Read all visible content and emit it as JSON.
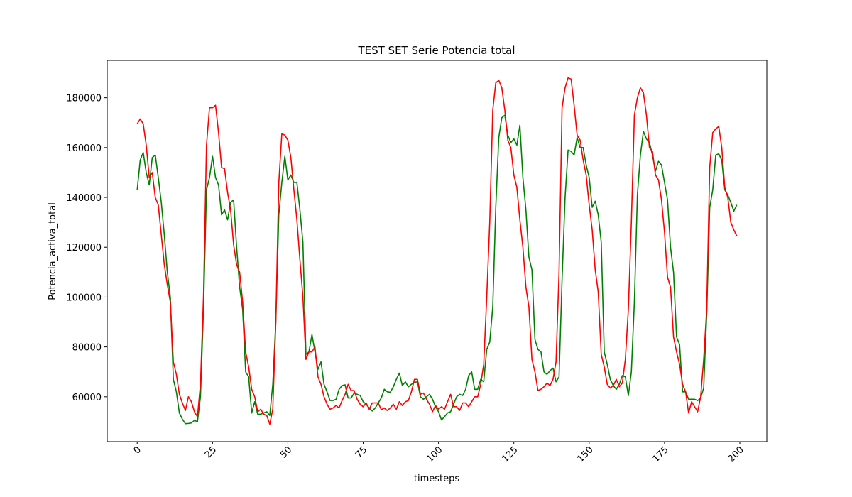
{
  "chart_data": {
    "type": "line",
    "title": "TEST SET Serie Potencia total",
    "x_label": "timesteps",
    "y_label": "Potencia_activa_total",
    "xlim": [
      -9.95,
      208.95
    ],
    "ylim": [
      42000,
      195000
    ],
    "xticks": [
      0,
      25,
      50,
      75,
      100,
      125,
      150,
      175,
      200
    ],
    "yticks": [
      60000,
      80000,
      100000,
      120000,
      140000,
      160000,
      180000
    ],
    "series": [
      {
        "color": "#008000",
        "values": [
          143000,
          155000,
          158000,
          150000,
          145000,
          156000,
          157000,
          148000,
          138000,
          125000,
          110000,
          100000,
          67000,
          62000,
          53500,
          51000,
          49200,
          49300,
          49500,
          50500,
          50000,
          60000,
          95000,
          143000,
          148000,
          156500,
          148000,
          145000,
          133000,
          135000,
          131000,
          138000,
          139000,
          120000,
          104000,
          95000,
          70000,
          68000,
          53500,
          58000,
          53000,
          53000,
          53500,
          54000,
          52500,
          65000,
          90000,
          133000,
          146000,
          156500,
          147000,
          149000,
          146000,
          146000,
          135000,
          122000,
          77000,
          78000,
          85000,
          78000,
          71000,
          74000,
          65000,
          62000,
          58500,
          58500,
          59000,
          63000,
          64500,
          64800,
          59500,
          59500,
          61500,
          61000,
          60500,
          58000,
          57000,
          55500,
          54300,
          55500,
          57500,
          59500,
          63000,
          62000,
          61800,
          64000,
          67000,
          69500,
          64500,
          66000,
          64000,
          65000,
          65800,
          66000,
          60000,
          59000,
          60000,
          61000,
          59000,
          56000,
          54000,
          50700,
          52000,
          53500,
          54000,
          57000,
          60000,
          61000,
          60500,
          63000,
          68500,
          70000,
          63000,
          63000,
          67000,
          66000,
          79000,
          82000,
          96000,
          136000,
          164000,
          172000,
          173000,
          165000,
          162000,
          163500,
          161000,
          169000,
          148000,
          135000,
          116000,
          111000,
          83000,
          79000,
          78000,
          70000,
          69000,
          70500,
          71500,
          66000,
          68000,
          107000,
          140000,
          159000,
          158500,
          157000,
          164000,
          160000,
          160000,
          153000,
          148000,
          136000,
          138500,
          133000,
          122000,
          78000,
          73000,
          67000,
          64500,
          63000,
          65000,
          68500,
          68000,
          60500,
          70000,
          98000,
          141000,
          157000,
          166500,
          163500,
          162000,
          157000,
          150500,
          154500,
          153000,
          146000,
          139000,
          120000,
          110000,
          84000,
          81000,
          62000,
          62000,
          59000,
          59000,
          59000,
          58500,
          59500,
          63500,
          93000,
          136000,
          143000,
          157000,
          157500,
          155000,
          143000,
          141000,
          138000,
          134500,
          137000
        ]
      },
      {
        "color": "#ff0000",
        "values": [
          169500,
          171500,
          169500,
          161000,
          148000,
          150000,
          140000,
          137000,
          125000,
          113000,
          105000,
          98000,
          74000,
          69000,
          61000,
          57500,
          54500,
          60000,
          58000,
          54000,
          52000,
          65000,
          100000,
          161000,
          176000,
          176000,
          177000,
          166000,
          152000,
          151500,
          142000,
          135000,
          121000,
          113000,
          110000,
          98000,
          78000,
          72000,
          63000,
          60000,
          54000,
          55000,
          53000,
          52500,
          49000,
          55000,
          90000,
          146000,
          165500,
          165000,
          163000,
          156000,
          143000,
          131000,
          115000,
          100000,
          75000,
          78000,
          78000,
          80000,
          68000,
          65000,
          60000,
          57000,
          55000,
          55500,
          56500,
          55500,
          58500,
          61000,
          65000,
          62500,
          62500,
          59000,
          57000,
          56000,
          57500,
          55000,
          57500,
          57500,
          57500,
          54800,
          55500,
          54500,
          55500,
          57000,
          55000,
          58000,
          56500,
          58000,
          58500,
          62000,
          67000,
          67000,
          61000,
          61500,
          59000,
          57000,
          54000,
          56500,
          55000,
          56000,
          55000,
          58000,
          61000,
          56000,
          56000,
          54500,
          57500,
          57500,
          56000,
          58000,
          60000,
          60000,
          65000,
          73000,
          100000,
          130000,
          175000,
          186000,
          187000,
          184000,
          175000,
          163000,
          160000,
          149000,
          144000,
          131000,
          120000,
          104000,
          96000,
          75000,
          70000,
          62500,
          63000,
          64000,
          65500,
          64500,
          67000,
          74000,
          110000,
          176000,
          184000,
          188000,
          187500,
          177000,
          165000,
          163000,
          155000,
          149000,
          137000,
          127000,
          111000,
          102000,
          77000,
          72000,
          65000,
          63500,
          64500,
          67000,
          64000,
          65500,
          75000,
          95000,
          130000,
          173000,
          180000,
          184000,
          182000,
          173000,
          160000,
          158500,
          149000,
          147000,
          139000,
          126000,
          108000,
          104000,
          84000,
          78000,
          73000,
          65000,
          62000,
          53500,
          58000,
          56000,
          54000,
          60000,
          75000,
          95000,
          152000,
          166000,
          167500,
          168500,
          160000,
          144000,
          140000,
          130000,
          127000,
          124500
        ]
      }
    ]
  }
}
